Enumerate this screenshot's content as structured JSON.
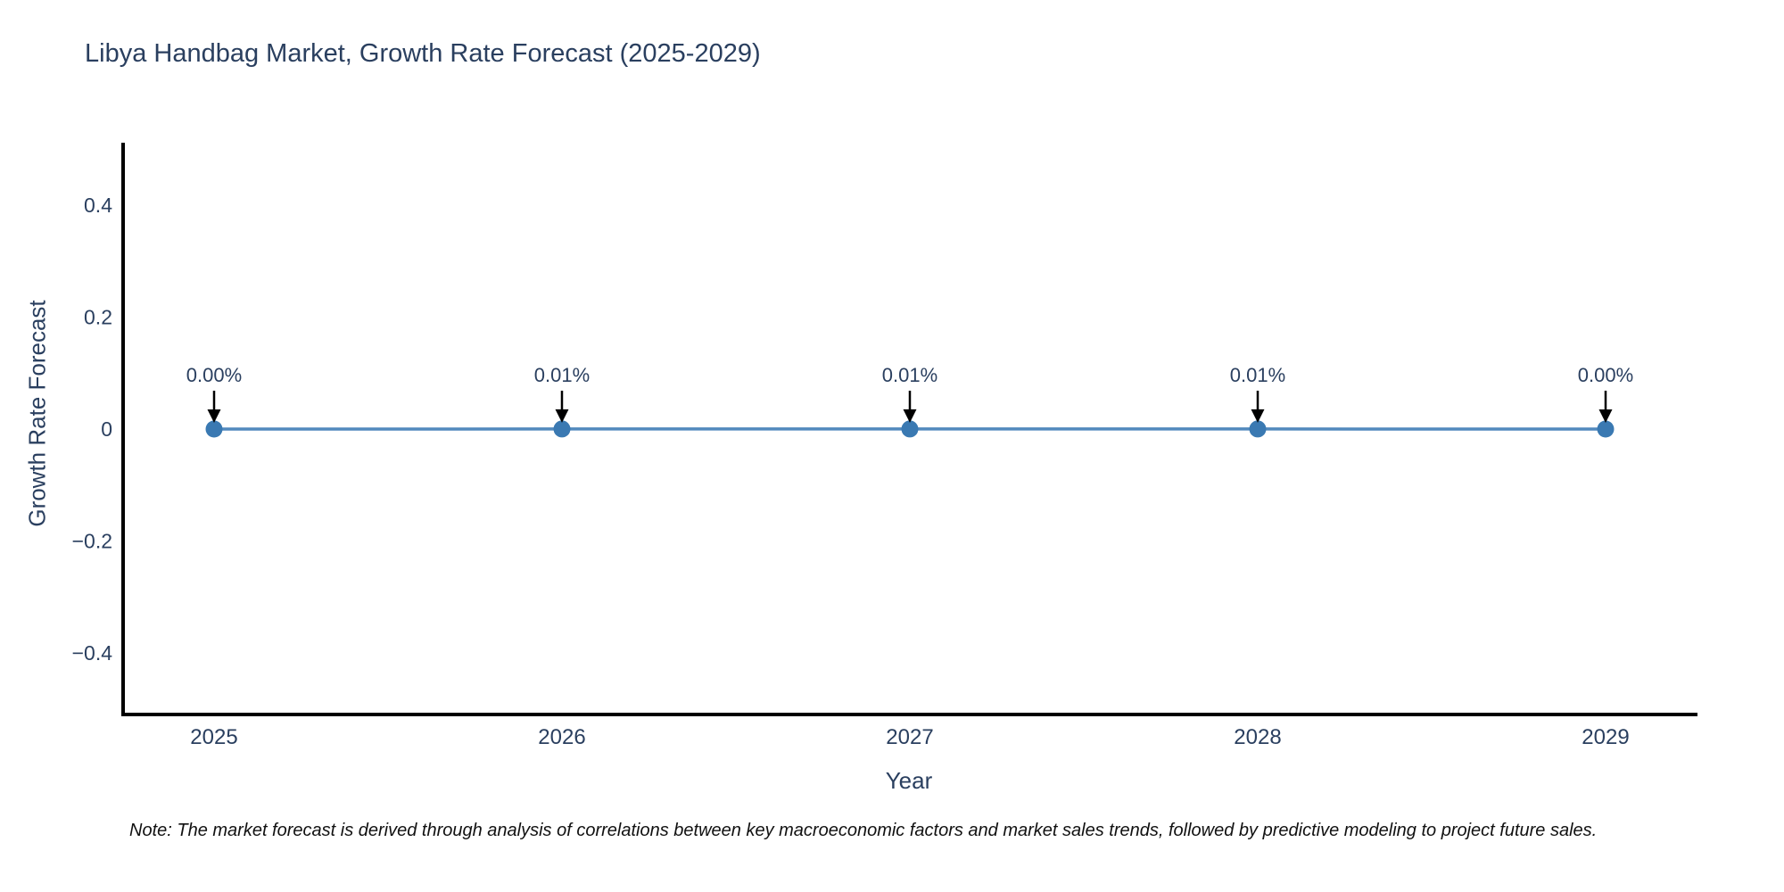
{
  "figure": {
    "note": "Note: The market forecast is derived through analysis of correlations between key macroeconomic factors and market sales trends, followed by predictive modeling to project future sales."
  },
  "chart_data": {
    "type": "line",
    "title": "Libya Handbag Market, Growth Rate Forecast (2025-2029)",
    "xlabel": "Year",
    "ylabel": "Growth Rate Forecast",
    "x": [
      2025,
      2026,
      2027,
      2028,
      2029
    ],
    "series": [
      {
        "name": "Growth Rate Forecast",
        "values": [
          0.0,
          0.0001,
          0.0001,
          0.0001,
          0.0
        ],
        "point_labels": [
          "0.00%",
          "0.01%",
          "0.01%",
          "0.01%",
          "0.00%"
        ]
      }
    ],
    "xtick_labels": [
      "2025",
      "2026",
      "2027",
      "2028",
      "2029"
    ],
    "ytick_values": [
      0.4,
      0.2,
      0,
      -0.2,
      -0.4
    ],
    "ytick_labels": [
      "0.4",
      "0.2",
      "0",
      "−0.2",
      "−0.4"
    ],
    "ylim": [
      -0.51,
      0.51
    ],
    "grid": false,
    "legend": false,
    "annotation_style": "arrow-down",
    "colors": {
      "line": "#5289bd",
      "marker": "#3a79b2",
      "axis_line": "#000000",
      "tick_text": "#2a3f5f",
      "annotation_text": "#2a3f5f",
      "arrow": "#000000",
      "title_text": "#2a3f5f",
      "note_text": "#111111",
      "background": "#ffffff"
    }
  }
}
